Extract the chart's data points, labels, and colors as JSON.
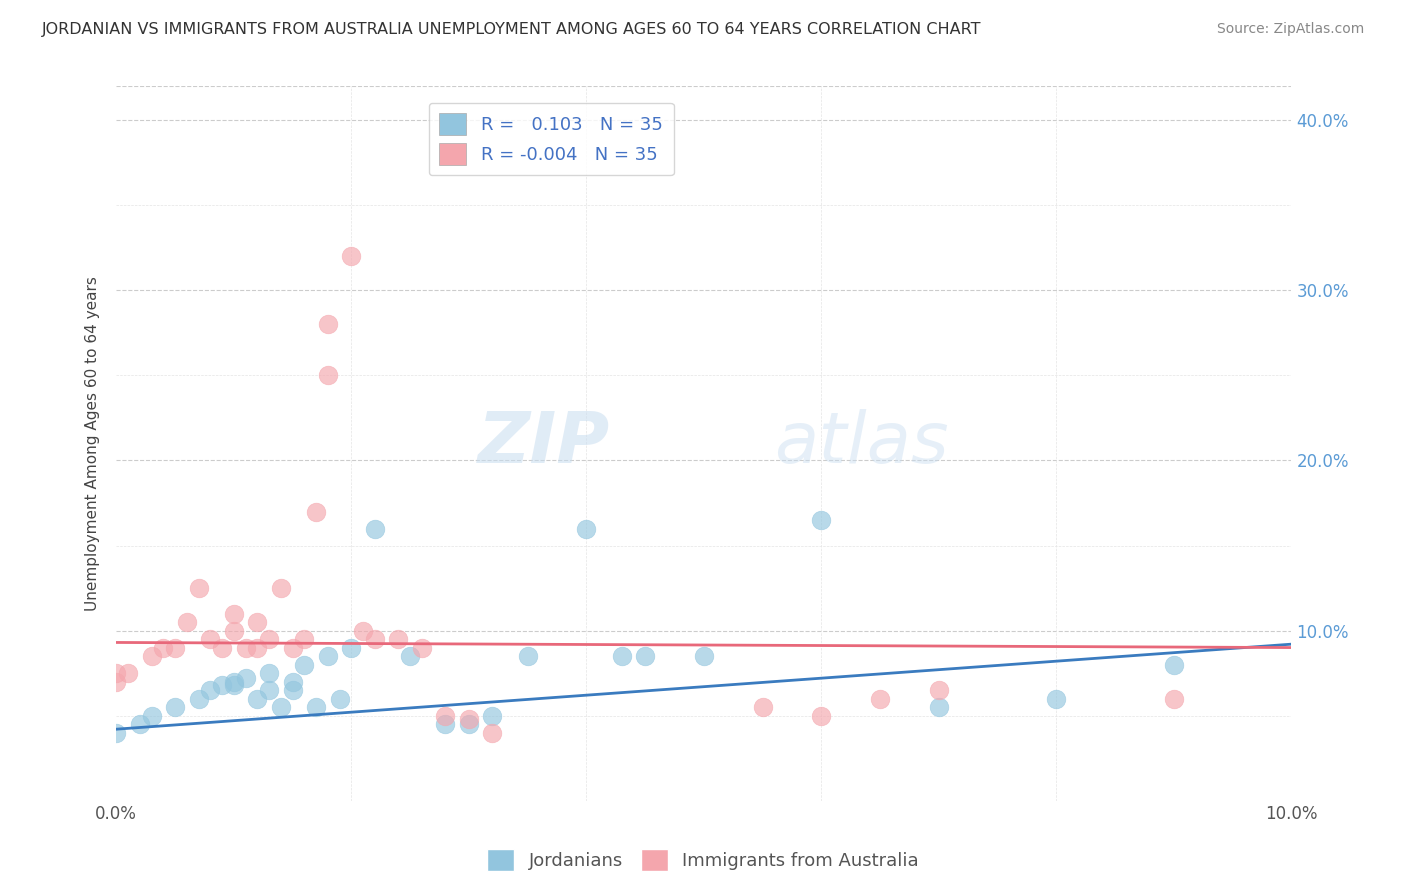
{
  "title": "JORDANIAN VS IMMIGRANTS FROM AUSTRALIA UNEMPLOYMENT AMONG AGES 60 TO 64 YEARS CORRELATION CHART",
  "source": "Source: ZipAtlas.com",
  "ylabel": "Unemployment Among Ages 60 to 64 years",
  "xlim": [
    0.0,
    0.1
  ],
  "ylim": [
    0.0,
    0.42
  ],
  "xtick_positions": [
    0.0,
    0.02,
    0.04,
    0.06,
    0.08,
    0.1
  ],
  "xtick_labels": [
    "0.0%",
    "",
    "",
    "",
    "",
    "10.0%"
  ],
  "ytick_positions": [
    0.0,
    0.05,
    0.1,
    0.15,
    0.2,
    0.25,
    0.3,
    0.35,
    0.4
  ],
  "ytick_labels": [
    "",
    "",
    "10.0%",
    "",
    "20.0%",
    "",
    "30.0%",
    "",
    "40.0%"
  ],
  "R_blue": 0.103,
  "N_blue": 35,
  "R_pink": -0.004,
  "N_pink": 35,
  "legend_labels": [
    "Jordanians",
    "Immigrants from Australia"
  ],
  "blue_color": "#92c5de",
  "pink_color": "#f4a6ad",
  "blue_line_color": "#3a7bbf",
  "pink_line_color": "#e8687a",
  "watermark_zip": "ZIP",
  "watermark_atlas": "atlas",
  "blue_scatter_x": [
    0.0,
    0.002,
    0.003,
    0.005,
    0.007,
    0.008,
    0.009,
    0.01,
    0.01,
    0.011,
    0.012,
    0.013,
    0.013,
    0.014,
    0.015,
    0.015,
    0.016,
    0.017,
    0.018,
    0.019,
    0.02,
    0.022,
    0.025,
    0.028,
    0.03,
    0.032,
    0.035,
    0.04,
    0.043,
    0.045,
    0.05,
    0.06,
    0.07,
    0.08,
    0.09
  ],
  "blue_scatter_y": [
    0.04,
    0.045,
    0.05,
    0.055,
    0.06,
    0.065,
    0.068,
    0.07,
    0.068,
    0.072,
    0.06,
    0.065,
    0.075,
    0.055,
    0.065,
    0.07,
    0.08,
    0.055,
    0.085,
    0.06,
    0.09,
    0.16,
    0.085,
    0.045,
    0.045,
    0.05,
    0.085,
    0.16,
    0.085,
    0.085,
    0.085,
    0.165,
    0.055,
    0.06,
    0.08
  ],
  "pink_scatter_x": [
    0.0,
    0.0,
    0.001,
    0.003,
    0.004,
    0.005,
    0.006,
    0.007,
    0.008,
    0.009,
    0.01,
    0.01,
    0.011,
    0.012,
    0.012,
    0.013,
    0.014,
    0.015,
    0.016,
    0.017,
    0.018,
    0.018,
    0.02,
    0.021,
    0.022,
    0.024,
    0.026,
    0.028,
    0.03,
    0.032,
    0.055,
    0.06,
    0.065,
    0.07,
    0.09
  ],
  "pink_scatter_y": [
    0.07,
    0.075,
    0.075,
    0.085,
    0.09,
    0.09,
    0.105,
    0.125,
    0.095,
    0.09,
    0.1,
    0.11,
    0.09,
    0.09,
    0.105,
    0.095,
    0.125,
    0.09,
    0.095,
    0.17,
    0.25,
    0.28,
    0.32,
    0.1,
    0.095,
    0.095,
    0.09,
    0.05,
    0.048,
    0.04,
    0.055,
    0.05,
    0.06,
    0.065,
    0.06
  ],
  "blue_line_x0": 0.0,
  "blue_line_x1": 0.1,
  "blue_line_y0": 0.042,
  "blue_line_y1": 0.092,
  "pink_line_x0": 0.0,
  "pink_line_x1": 0.1,
  "pink_line_y0": 0.093,
  "pink_line_y1": 0.09
}
